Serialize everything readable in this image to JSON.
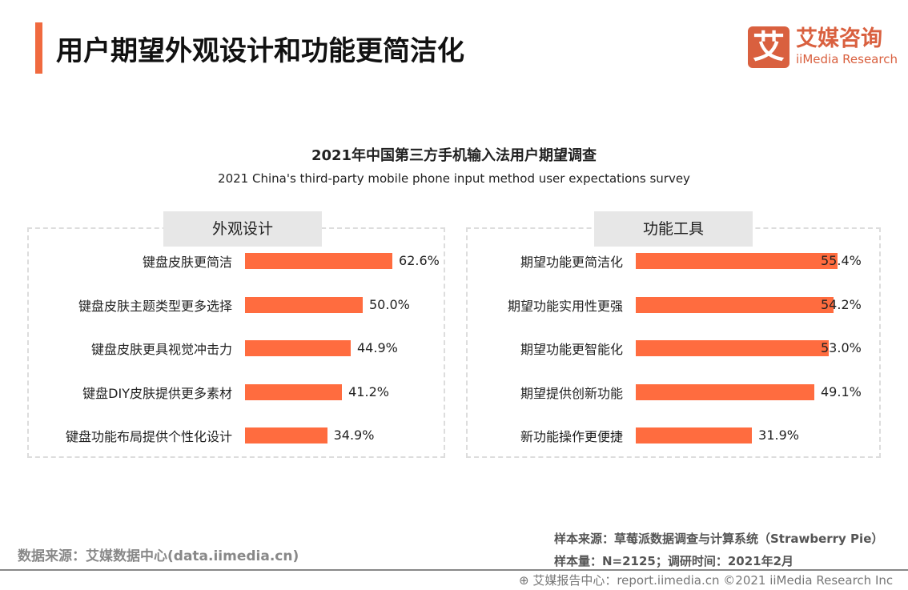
{
  "header": {
    "title": "用户期望外观设计和功能更简洁化",
    "accent_color": "#f06a3f"
  },
  "logo": {
    "mark": "艾",
    "cn": "艾媒咨询",
    "en": "iiMedia Research"
  },
  "chart_data": [
    {
      "type": "bar",
      "orientation": "horizontal",
      "title": "2021年中国第三方手机输入法用户期望调查",
      "subtitle": "2021 China's third-party mobile phone input method user expectations survey",
      "panel": "外观设计",
      "color": "#ff6c3f",
      "categories": [
        "键盘皮肤更简洁",
        "键盘皮肤主题类型更多选择",
        "键盘皮肤更具视觉冲击力",
        "键盘DIY皮肤提供更多素材",
        "键盘功能布局提供个性化设计"
      ],
      "values": [
        62.6,
        50.0,
        44.9,
        41.2,
        34.9
      ],
      "labels": [
        "62.6%",
        "50.0%",
        "44.9%",
        "41.2%",
        "34.9%"
      ]
    },
    {
      "type": "bar",
      "orientation": "horizontal",
      "panel": "功能工具",
      "color": "#ff6c3f",
      "categories": [
        "期望功能更简洁化",
        "期望功能实用性更强",
        "期望功能更智能化",
        "期望提供创新功能",
        "新功能操作更便捷"
      ],
      "values": [
        55.4,
        54.2,
        53.0,
        49.1,
        31.9
      ],
      "labels": [
        "55.4%",
        "54.2%",
        "53.0%",
        "49.1%",
        "31.9%"
      ]
    }
  ],
  "footer": {
    "source": "数据来源：艾媒数据中心(data.iimedia.cn)",
    "sample_source": "样本来源：草莓派数据调查与计算系统（Strawberry Pie）",
    "sample_size": "样本量：N=2125；调研时间：2021年2月",
    "copyright": "艾媒报告中心：report.iimedia.cn   ©2021  iiMedia Research  Inc"
  }
}
